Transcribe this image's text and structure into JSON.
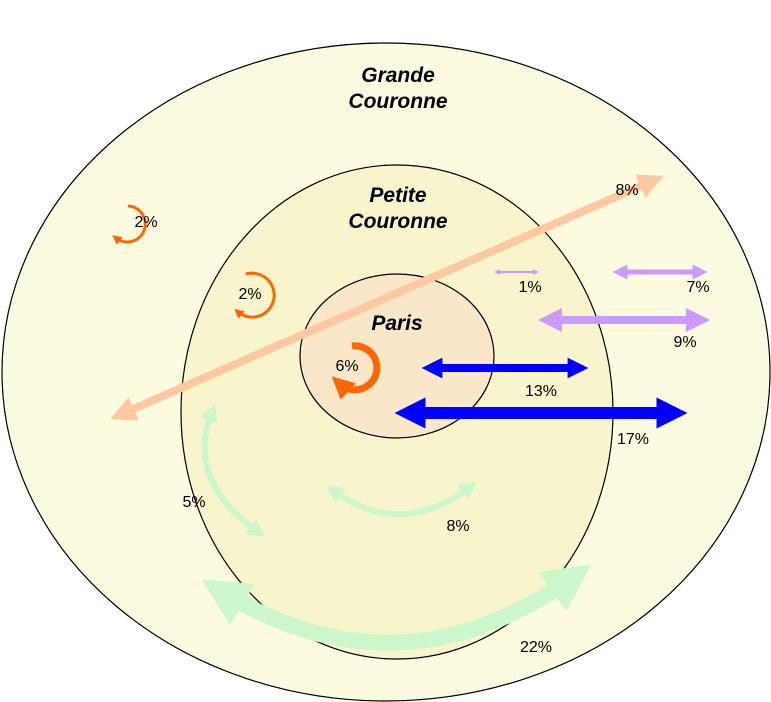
{
  "zones": [
    {
      "label_lines": [
        "Grande",
        "Couronne"
      ]
    },
    {
      "label_lines": [
        "Petite",
        "Couronne"
      ]
    },
    {
      "label_lines": [
        "Paris"
      ]
    }
  ],
  "flows": [
    {
      "label": "2%"
    },
    {
      "label": "2%"
    },
    {
      "label": "6%"
    },
    {
      "label": "8%"
    },
    {
      "label": "1%"
    },
    {
      "label": "7%"
    },
    {
      "label": "9%"
    },
    {
      "label": "13%"
    },
    {
      "label": "17%"
    },
    {
      "label": "5%"
    },
    {
      "label": "8%"
    },
    {
      "label": "22%"
    }
  ]
}
